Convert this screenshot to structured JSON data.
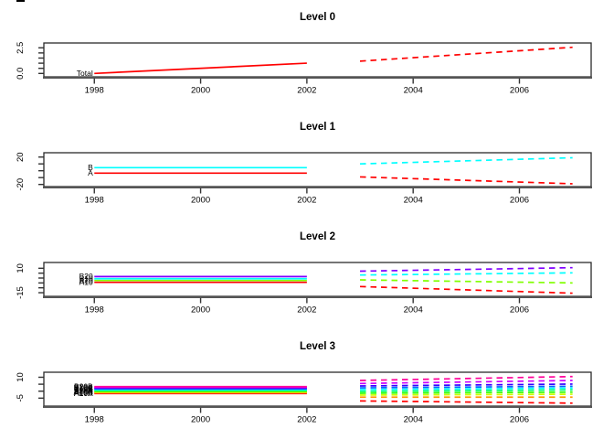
{
  "page": {
    "background": "#ffffff",
    "plot_text_color": "#000000"
  },
  "chart_data": [
    {
      "type": "line",
      "title": "Level 0",
      "xticks": [
        "1998",
        "2000",
        "2002",
        "2004",
        "2006"
      ],
      "xtick_values": [
        1998,
        2000,
        2002,
        2004,
        2006
      ],
      "xlim": [
        1997.05,
        2007.35
      ],
      "ylim": [
        -0.33,
        2.97
      ],
      "ytick_values": [
        0,
        0.5,
        1,
        1.5,
        2,
        2.5
      ],
      "ytick_labels": [
        "0.0",
        "",
        "",
        "",
        "",
        "2.5"
      ],
      "x_hist": [
        1998,
        2002
      ],
      "x_forecast": [
        2003,
        2007
      ],
      "grid": false,
      "legend": "none",
      "series": [
        {
          "name": "Total",
          "label": "Total",
          "color": "#FF0000",
          "hist": [
            0.0,
            1.0
          ],
          "forecast": [
            1.2,
            2.55
          ]
        }
      ]
    },
    {
      "type": "line",
      "title": "Level 1",
      "xticks": [
        "1998",
        "2000",
        "2002",
        "2004",
        "2006"
      ],
      "xtick_values": [
        1998,
        2000,
        2002,
        2004,
        2006
      ],
      "xlim": [
        1997.05,
        2007.35
      ],
      "ylim": [
        -23.1,
        26.3
      ],
      "ytick_values": [
        -20,
        -10,
        0,
        10,
        20
      ],
      "ytick_labels": [
        "-20",
        "",
        "",
        "",
        "20"
      ],
      "x_hist": [
        1998,
        2002
      ],
      "x_forecast": [
        2003,
        2007
      ],
      "grid": false,
      "legend": "none",
      "series": [
        {
          "name": "A",
          "label": "A",
          "color": "#FF0000",
          "hist": [
            -3.5,
            -3.5
          ],
          "forecast": [
            -9,
            -19
          ]
        },
        {
          "name": "B",
          "label": "B",
          "color": "#00FFFF",
          "hist": [
            4.5,
            4.5
          ],
          "forecast": [
            10,
            19
          ]
        }
      ]
    },
    {
      "type": "line",
      "title": "Level 2",
      "xticks": [
        "1998",
        "2000",
        "2002",
        "2004",
        "2006"
      ],
      "xtick_values": [
        1998,
        2000,
        2002,
        2004,
        2006
      ],
      "xlim": [
        1997.05,
        2007.35
      ],
      "ylim": [
        -18.7,
        15.9
      ],
      "ytick_values": [
        -15,
        -10,
        -5,
        0,
        5,
        10
      ],
      "ytick_labels": [
        "-15",
        "",
        "",
        "",
        "",
        "10"
      ],
      "x_hist": [
        1998,
        2002
      ],
      "x_forecast": [
        2003,
        2007
      ],
      "grid": false,
      "legend": "none",
      "series": [
        {
          "name": "A10",
          "label": "A10",
          "color": "#FF0000",
          "hist": [
            -4.4,
            -4.4
          ],
          "forecast": [
            -8.7,
            -15.5
          ]
        },
        {
          "name": "A20",
          "label": "A20",
          "color": "#80FF00",
          "hist": [
            -2.5,
            -2.5
          ],
          "forecast": [
            -1.9,
            -5.0
          ]
        },
        {
          "name": "B10",
          "label": "B10",
          "color": "#00FFFF",
          "hist": [
            -0.7,
            -0.7
          ],
          "forecast": [
            3.1,
            5.3
          ]
        },
        {
          "name": "B20",
          "label": "B20",
          "color": "#8000FF",
          "hist": [
            1.5,
            1.5
          ],
          "forecast": [
            7.0,
            10.6
          ]
        }
      ]
    },
    {
      "type": "line",
      "title": "Level 3",
      "xticks": [
        "1998",
        "2000",
        "2002",
        "2004",
        "2006"
      ],
      "xtick_values": [
        1998,
        2000,
        2002,
        2004,
        2006
      ],
      "xlim": [
        1997.05,
        2007.35
      ],
      "ylim": [
        -10.7,
        13.6
      ],
      "ytick_values": [
        -5,
        0,
        5,
        10
      ],
      "ytick_labels": [
        "-5",
        "",
        "",
        "10"
      ],
      "x_hist": [
        1998,
        2002
      ],
      "x_forecast": [
        2003,
        2007
      ],
      "grid": false,
      "legend": "none",
      "series": [
        {
          "name": "A10A",
          "label": "A10A",
          "color": "#FF0000",
          "hist": [
            -1.7,
            -1.7
          ],
          "forecast": [
            -7.0,
            -8.6
          ]
        },
        {
          "name": "A10B",
          "label": "A10B",
          "color": "#FF9900",
          "hist": [
            -1.15,
            -1.15
          ],
          "forecast": [
            -4.3,
            -4.3
          ]
        },
        {
          "name": "A10C",
          "label": "A10C",
          "color": "#CCFF00",
          "hist": [
            -0.6,
            -0.6
          ],
          "forecast": [
            -2.8,
            -2.2
          ]
        },
        {
          "name": "A20A",
          "label": "A20A",
          "color": "#33FF00",
          "hist": [
            -0.05,
            -0.05
          ],
          "forecast": [
            -1.5,
            -0.7
          ]
        },
        {
          "name": "A20B",
          "label": "A20B",
          "color": "#00FF66",
          "hist": [
            0.5,
            0.5
          ],
          "forecast": [
            -0.2,
            0.9
          ]
        },
        {
          "name": "B10A",
          "label": "B10A",
          "color": "#00FFFF",
          "hist": [
            1.05,
            1.05
          ],
          "forecast": [
            1.1,
            2.2
          ]
        },
        {
          "name": "B10B",
          "label": "B10B",
          "color": "#0066FF",
          "hist": [
            1.6,
            1.6
          ],
          "forecast": [
            2.4,
            3.5
          ]
        },
        {
          "name": "B10C",
          "label": "B10C",
          "color": "#3300FF",
          "hist": [
            2.15,
            2.15
          ],
          "forecast": [
            3.75,
            5.1
          ]
        },
        {
          "name": "B20A",
          "label": "B20A",
          "color": "#CC00FF",
          "hist": [
            2.7,
            2.7
          ],
          "forecast": [
            5.5,
            7.7
          ]
        },
        {
          "name": "B20B",
          "label": "B20B",
          "color": "#FF0099",
          "hist": [
            3.25,
            3.25
          ],
          "forecast": [
            7.7,
            10.5
          ]
        }
      ]
    }
  ]
}
